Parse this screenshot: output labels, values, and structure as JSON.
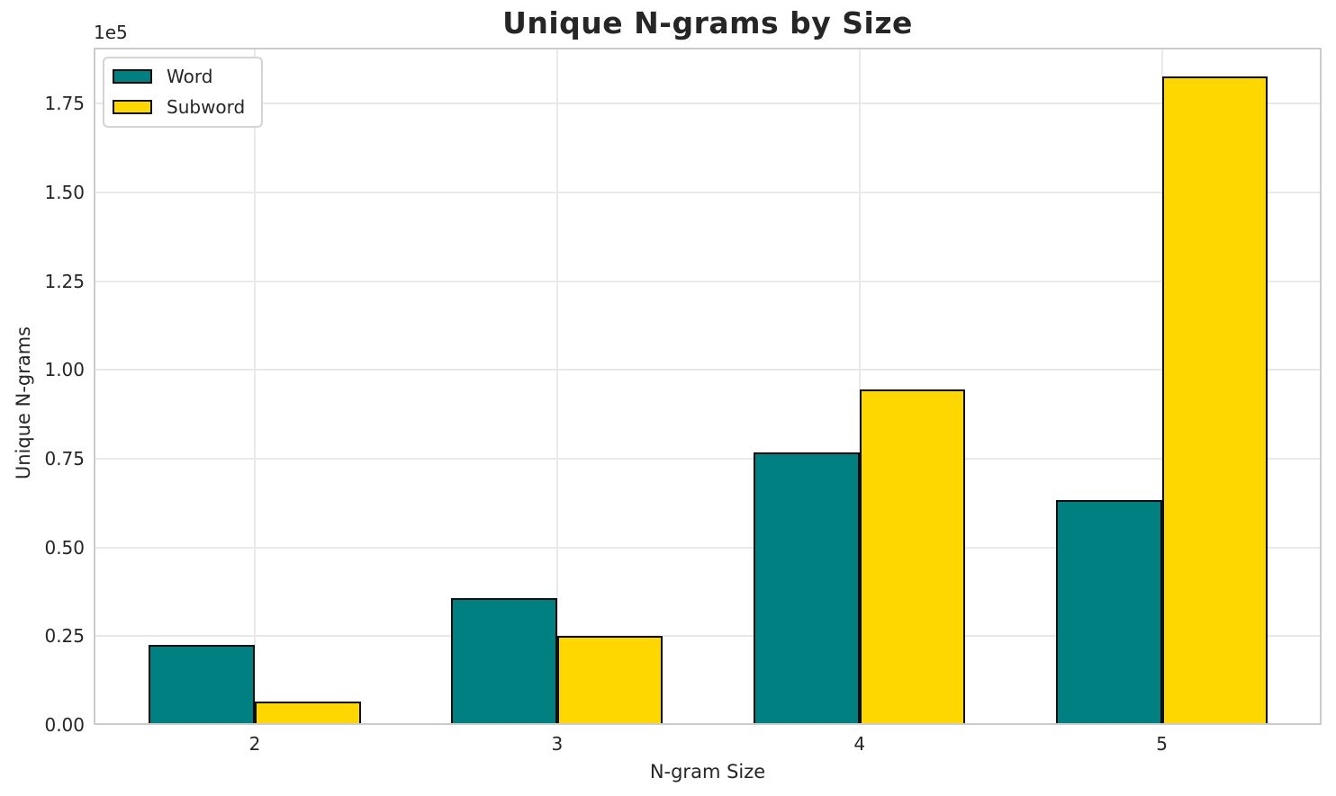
{
  "figure": {
    "background": "#ffffff",
    "text_color": "#262626",
    "grid_color": "#e9e9e9",
    "spine_color": "#cccccc"
  },
  "chart_data": {
    "type": "bar",
    "title": "Unique N-grams by Size",
    "xlabel": "N-gram Size",
    "ylabel": "Unique N-grams",
    "y_offset_text": "1e5",
    "categories": [
      "2",
      "3",
      "4",
      "5"
    ],
    "x_positions": [
      2,
      3,
      4,
      5
    ],
    "series": [
      {
        "name": "Word",
        "color": "#008080",
        "values": [
          22500,
          35700,
          76800,
          63300
        ]
      },
      {
        "name": "Subword",
        "color": "#FFD700",
        "values": [
          6500,
          25100,
          94500,
          182600
        ]
      }
    ],
    "bar_width": 0.35,
    "bar_edge_color": "#0d0d0d",
    "xlim": [
      1.467,
      5.528
    ],
    "ylim": [
      0,
      190800
    ],
    "yticks": [
      0,
      25000,
      50000,
      75000,
      100000,
      125000,
      150000,
      175000
    ],
    "ytick_labels": [
      "0.00",
      "0.25",
      "0.50",
      "0.75",
      "1.00",
      "1.25",
      "1.50",
      "1.75"
    ],
    "grid": true,
    "legend_position": "upper left"
  }
}
